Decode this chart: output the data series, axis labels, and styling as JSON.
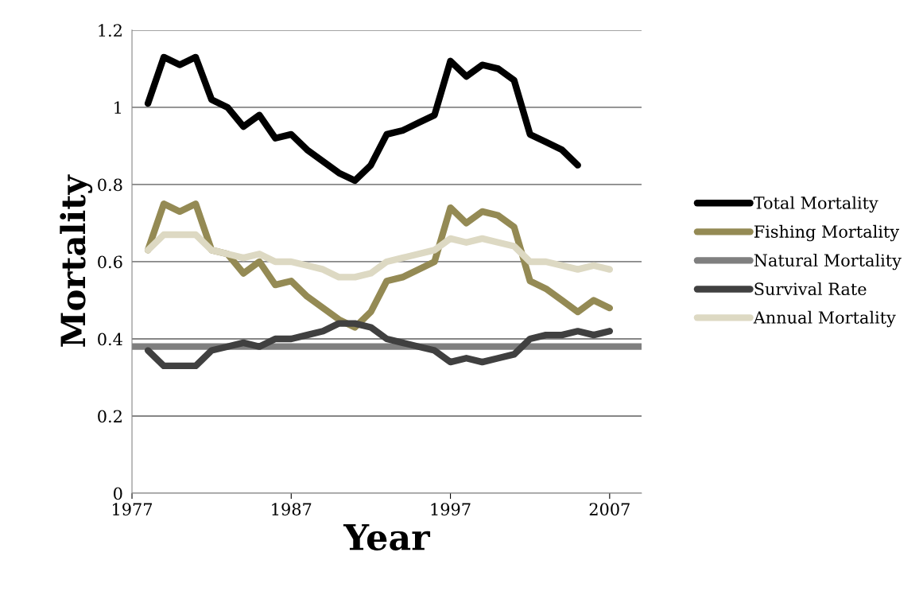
{
  "chart_data": {
    "type": "line",
    "xlabel": "Year",
    "ylabel": "Mortality",
    "x": [
      1978,
      1979,
      1980,
      1981,
      1982,
      1983,
      1984,
      1985,
      1986,
      1987,
      1988,
      1989,
      1990,
      1991,
      1992,
      1993,
      1994,
      1995,
      1996,
      1997,
      1998,
      1999,
      2000,
      2001,
      2002,
      2003,
      2004,
      2005,
      2006,
      2007
    ],
    "series": [
      {
        "name": "Total Mortality",
        "color": "#000000",
        "values": [
          1.01,
          1.13,
          1.11,
          1.13,
          1.02,
          1.0,
          0.95,
          0.98,
          0.92,
          0.93,
          0.89,
          0.86,
          0.83,
          0.81,
          0.85,
          0.93,
          0.94,
          0.96,
          0.98,
          1.12,
          1.08,
          1.11,
          1.1,
          1.07,
          0.93,
          0.91,
          0.89,
          0.85,
          null,
          null
        ]
      },
      {
        "name": "Fishing Mortality",
        "color": "#948a54",
        "values": [
          0.63,
          0.75,
          0.73,
          0.75,
          0.63,
          0.62,
          0.57,
          0.6,
          0.54,
          0.55,
          0.51,
          0.48,
          0.45,
          0.43,
          0.47,
          0.55,
          0.56,
          0.58,
          0.6,
          0.74,
          0.7,
          0.73,
          0.72,
          0.69,
          0.55,
          0.53,
          0.5,
          0.47,
          0.5,
          0.48
        ]
      },
      {
        "name": "Natural Mortality",
        "color": "#7f7f7f",
        "x": [
          1977,
          2009
        ],
        "values": [
          0.38,
          0.38
        ]
      },
      {
        "name": "Survival Rate",
        "color": "#404040",
        "values": [
          0.37,
          0.33,
          0.33,
          0.33,
          0.37,
          0.38,
          0.39,
          0.38,
          0.4,
          0.4,
          0.41,
          0.42,
          0.44,
          0.44,
          0.43,
          0.4,
          0.39,
          0.38,
          0.37,
          0.34,
          0.35,
          0.34,
          0.35,
          0.36,
          0.4,
          0.41,
          0.41,
          0.42,
          0.41,
          0.42
        ]
      },
      {
        "name": "Annual Mortality",
        "color": "#ddd9c3",
        "values": [
          0.63,
          0.67,
          0.67,
          0.67,
          0.63,
          0.62,
          0.61,
          0.62,
          0.6,
          0.6,
          0.59,
          0.58,
          0.56,
          0.56,
          0.57,
          0.6,
          0.61,
          0.62,
          0.63,
          0.66,
          0.65,
          0.66,
          0.65,
          0.64,
          0.6,
          0.6,
          0.59,
          0.58,
          0.59,
          0.58
        ]
      }
    ],
    "xlim": [
      1977,
      2009
    ],
    "xticks": [
      1977,
      1987,
      1997,
      2007
    ],
    "ylim": [
      0,
      1.2
    ],
    "yticks": [
      0,
      {
        "value": 0.2,
        "label": "0.2"
      },
      {
        "value": 0.4,
        "label": "0.4"
      },
      {
        "value": 0.6,
        "label": "0.6"
      },
      {
        "value": 0.8,
        "label": "0.8"
      },
      {
        "value": 1,
        "label": "1"
      },
      {
        "value": 1.2,
        "label": "1.2"
      }
    ],
    "grid": "y",
    "legend": "right",
    "marker": "none",
    "line_style": "solid"
  }
}
